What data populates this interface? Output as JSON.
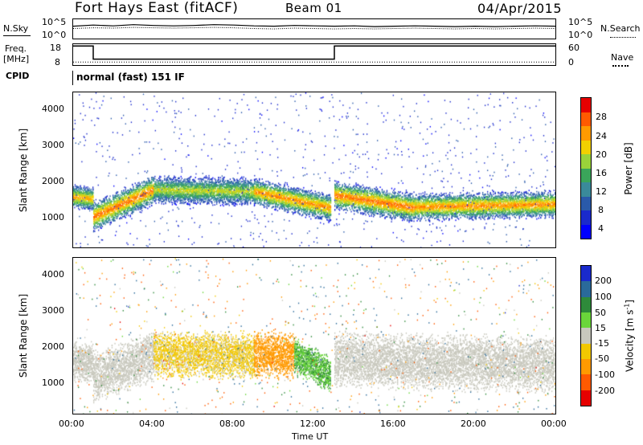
{
  "header": {
    "station": "Fort Hays East (fitACF)",
    "beam": "Beam 01",
    "date": "04/Apr/2015"
  },
  "noise_panel": {
    "left_label": "N.Sky",
    "right_label": "N.Search",
    "ticks_left": [
      "10^5",
      "10^0"
    ],
    "ticks_right": [
      "10^5",
      "10^0"
    ]
  },
  "freq_panel": {
    "left_label_1": "Freq.",
    "left_label_2": "[MHz]",
    "right_label": "Nave",
    "ticks_left": [
      "18",
      "8"
    ],
    "ticks_right": [
      "60",
      "0"
    ]
  },
  "cpid": {
    "label": "CPID",
    "mode": "normal (fast) 151 IF"
  },
  "range_panels": {
    "ylabel": "Slant Range [km]",
    "y_ticks": [
      "4000",
      "3000",
      "2000",
      "1000"
    ]
  },
  "x_axis": {
    "ticks": [
      "00:00",
      "04:00",
      "08:00",
      "12:00",
      "16:00",
      "20:00",
      "00:00"
    ],
    "label": "Time UT"
  },
  "power_bar": {
    "label": "Power [dB]",
    "ticks": [
      "28",
      "24",
      "20",
      "16",
      "12",
      "8",
      "4"
    ],
    "colors": [
      "#e60000",
      "#ff5a00",
      "#ff9a00",
      "#f2d000",
      "#9ad33a",
      "#3aa55a",
      "#3a8a9a",
      "#2a5aaa",
      "#1a2acc",
      "#0000ff"
    ]
  },
  "velocity_bar": {
    "label_main": "Velocity [m s",
    "label_sup": "-1",
    "label_end": "]",
    "ticks": [
      "200",
      "100",
      "50",
      "15",
      "-15",
      "-50",
      "-100",
      "-200"
    ],
    "colors": [
      "#1a2acc",
      "#2a6a9a",
      "#2e8a3a",
      "#6ad63a",
      "#c8c8bd",
      "#f2c800",
      "#ff9a00",
      "#ff5a00",
      "#e60000"
    ]
  },
  "chart_data": [
    {
      "type": "line",
      "panel": "noise",
      "x_range_hours": [
        0,
        24
      ],
      "series": [
        {
          "x": [
            0,
            1,
            2,
            3,
            4,
            5,
            6,
            7,
            8,
            9,
            10,
            11,
            12,
            13,
            14,
            15,
            16,
            17,
            18,
            19,
            20,
            21,
            22,
            23,
            24
          ],
          "y": [
            3.2,
            3.5,
            3.3,
            3.6,
            3.4,
            3.3,
            3.4,
            3.6,
            3.5,
            3.3,
            3.2,
            3.4,
            3.3,
            3.2,
            3.3,
            3.1,
            3.2,
            3.3,
            3.2,
            3.1,
            3.2,
            3.1,
            3.2,
            3.3,
            3.2
          ]
        },
        {
          "x": [
            0,
            1,
            2,
            3,
            4,
            5,
            6,
            7,
            8,
            9,
            10,
            11,
            12,
            13,
            14,
            15,
            16,
            17,
            18,
            19,
            20,
            21,
            22,
            23,
            24
          ],
          "y": [
            2.6,
            2.8,
            2.7,
            2.9,
            2.8,
            2.7,
            2.8,
            2.9,
            2.8,
            2.6,
            2.5,
            2.7,
            2.6,
            2.5,
            2.6,
            2.5,
            2.6,
            2.7,
            2.6,
            2.5,
            2.6,
            2.5,
            2.6,
            2.7,
            2.6
          ]
        }
      ]
    },
    {
      "type": "line",
      "panel": "frequency",
      "x_range_hours": [
        0,
        24
      ],
      "series": [
        {
          "x": [
            0,
            1.0,
            1.0,
            13.0,
            13.0,
            24
          ],
          "y": [
            17.6,
            17.6,
            11.0,
            11.0,
            17.6,
            17.6
          ]
        },
        {
          "x": [
            0,
            24
          ],
          "y": [
            9.5,
            9.5
          ]
        }
      ]
    },
    {
      "type": "heatmap",
      "panel": "power",
      "x_range_hours": [
        0,
        24
      ],
      "y_range_km": [
        180,
        4500
      ],
      "bands": [
        {
          "x": [
            0,
            1
          ],
          "center_km": [
            1600,
            1550
          ],
          "width_km": 260,
          "level": 0.7
        },
        {
          "x": [
            1,
            4
          ],
          "center_km": [
            1050,
            1800
          ],
          "width_km": 330,
          "level": 0.8
        },
        {
          "x": [
            4,
            9
          ],
          "center_km": [
            1800,
            1750
          ],
          "width_km": 300,
          "level": 0.55
        },
        {
          "x": [
            9,
            12.8
          ],
          "center_km": [
            1750,
            1300
          ],
          "width_km": 300,
          "level": 0.75
        },
        {
          "x": [
            13,
            17
          ],
          "center_km": [
            1650,
            1300
          ],
          "width_km": 320,
          "level": 0.8
        },
        {
          "x": [
            17,
            24
          ],
          "center_km": [
            1320,
            1400
          ],
          "width_km": 300,
          "level": 0.75
        }
      ]
    },
    {
      "type": "heatmap",
      "panel": "velocity",
      "x_range_hours": [
        0,
        24
      ],
      "y_range_km": [
        180,
        4500
      ],
      "bands": [
        {
          "x": [
            0,
            1
          ],
          "center_km": [
            1650,
            1600
          ],
          "width_km": 420,
          "value": 0
        },
        {
          "x": [
            1,
            4
          ],
          "center_km": [
            1200,
            1800
          ],
          "width_km": 550,
          "value": 0
        },
        {
          "x": [
            4,
            9
          ],
          "center_km": [
            1850,
            1800
          ],
          "width_km": 500,
          "value": -20
        },
        {
          "x": [
            9,
            11
          ],
          "center_km": [
            1850,
            1800
          ],
          "width_km": 500,
          "value": -60
        },
        {
          "x": [
            11,
            12.8
          ],
          "center_km": [
            1800,
            1300
          ],
          "width_km": 400,
          "value": 30
        },
        {
          "x": [
            13,
            24
          ],
          "center_km": [
            1700,
            1550
          ],
          "width_km": 600,
          "value": 0
        }
      ]
    }
  ]
}
